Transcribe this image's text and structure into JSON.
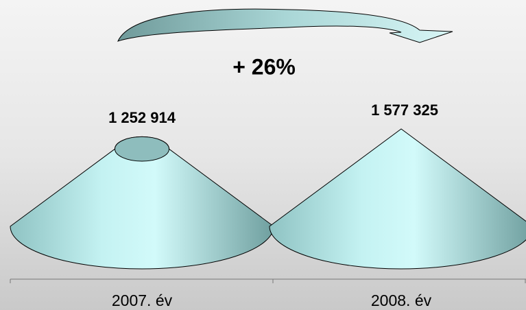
{
  "chart_data": {
    "type": "cone",
    "annotation": "+ 26%",
    "categories": [
      "2007. év",
      "2008. év"
    ],
    "values": [
      1252914,
      1577325
    ],
    "value_labels": [
      "1 252 914",
      "1 577 325"
    ],
    "color": "#b8eaea"
  }
}
